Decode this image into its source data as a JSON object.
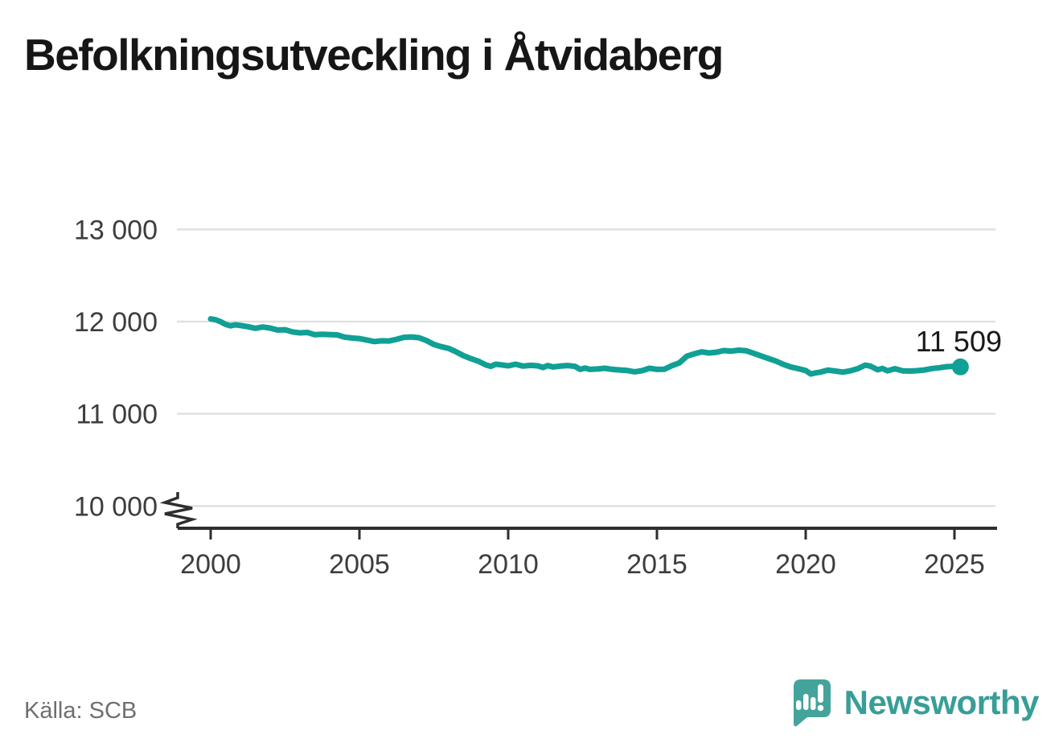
{
  "title": "Befolkningsutveckling i Åtvidaberg",
  "source": "Källa: SCB",
  "branding": {
    "wordmark": "Newsworthy",
    "logo_icon": "newsworthy-speech-bubble-bar-chart-icon"
  },
  "colors": {
    "line": "#10a095",
    "end_dot": "#10a095",
    "grid": "#e1e1e1",
    "axis": "#2e2e2e",
    "tick_label": "#3d3d3d",
    "title": "#161616",
    "end_label": "#191919",
    "source": "#6f6f6f",
    "brand_mark": "#44a49c",
    "brand_text": "#389e97"
  },
  "chart_data": {
    "type": "line",
    "title": "Befolkningsutveckling i Åtvidaberg",
    "series_name": "Befolkning i Åtvidaberg",
    "grid": "horizontal",
    "legend": false,
    "xlabel": "",
    "ylabel": "",
    "x_axis": {
      "ticks": [
        2000,
        2005,
        2010,
        2015,
        2020,
        2025
      ],
      "range": [
        2000,
        2026.4
      ]
    },
    "y_axis": {
      "ticks": [
        {
          "label": "13 000",
          "value": 13000
        },
        {
          "label": "12 000",
          "value": 12000
        },
        {
          "label": "11 000",
          "value": 11000
        },
        {
          "label": "10 000",
          "value": 10000
        }
      ],
      "axis_break_below": 10000
    },
    "last_point": {
      "x": 2025.2,
      "value": 11509,
      "label": "11 509"
    },
    "points": [
      [
        2000.0,
        12030
      ],
      [
        2000.17,
        12020
      ],
      [
        2000.33,
        12000
      ],
      [
        2000.5,
        11970
      ],
      [
        2000.67,
        11955
      ],
      [
        2000.83,
        11965
      ],
      [
        2001.0,
        11958
      ],
      [
        2001.25,
        11945
      ],
      [
        2001.5,
        11928
      ],
      [
        2001.75,
        11942
      ],
      [
        2002.0,
        11930
      ],
      [
        2002.25,
        11908
      ],
      [
        2002.5,
        11912
      ],
      [
        2002.75,
        11888
      ],
      [
        2003.0,
        11878
      ],
      [
        2003.25,
        11882
      ],
      [
        2003.5,
        11858
      ],
      [
        2003.75,
        11862
      ],
      [
        2004.0,
        11860
      ],
      [
        2004.25,
        11856
      ],
      [
        2004.5,
        11832
      ],
      [
        2004.75,
        11822
      ],
      [
        2005.0,
        11816
      ],
      [
        2005.25,
        11800
      ],
      [
        2005.5,
        11784
      ],
      [
        2005.75,
        11792
      ],
      [
        2006.0,
        11790
      ],
      [
        2006.25,
        11808
      ],
      [
        2006.5,
        11830
      ],
      [
        2006.75,
        11833
      ],
      [
        2007.0,
        11826
      ],
      [
        2007.25,
        11795
      ],
      [
        2007.5,
        11752
      ],
      [
        2007.75,
        11728
      ],
      [
        2008.0,
        11710
      ],
      [
        2008.25,
        11672
      ],
      [
        2008.5,
        11630
      ],
      [
        2008.75,
        11598
      ],
      [
        2009.0,
        11570
      ],
      [
        2009.25,
        11530
      ],
      [
        2009.42,
        11515
      ],
      [
        2009.58,
        11538
      ],
      [
        2009.75,
        11532
      ],
      [
        2010.0,
        11520
      ],
      [
        2010.25,
        11538
      ],
      [
        2010.5,
        11518
      ],
      [
        2010.75,
        11526
      ],
      [
        2011.0,
        11520
      ],
      [
        2011.17,
        11502
      ],
      [
        2011.33,
        11524
      ],
      [
        2011.5,
        11508
      ],
      [
        2011.75,
        11518
      ],
      [
        2012.0,
        11524
      ],
      [
        2012.25,
        11514
      ],
      [
        2012.42,
        11482
      ],
      [
        2012.58,
        11496
      ],
      [
        2012.75,
        11482
      ],
      [
        2013.0,
        11486
      ],
      [
        2013.25,
        11494
      ],
      [
        2013.5,
        11482
      ],
      [
        2013.75,
        11476
      ],
      [
        2014.0,
        11470
      ],
      [
        2014.25,
        11456
      ],
      [
        2014.5,
        11468
      ],
      [
        2014.75,
        11494
      ],
      [
        2015.0,
        11482
      ],
      [
        2015.25,
        11484
      ],
      [
        2015.5,
        11522
      ],
      [
        2015.75,
        11552
      ],
      [
        2016.0,
        11624
      ],
      [
        2016.25,
        11650
      ],
      [
        2016.5,
        11672
      ],
      [
        2016.75,
        11660
      ],
      [
        2017.0,
        11668
      ],
      [
        2017.25,
        11686
      ],
      [
        2017.5,
        11680
      ],
      [
        2017.75,
        11690
      ],
      [
        2018.0,
        11684
      ],
      [
        2018.25,
        11656
      ],
      [
        2018.5,
        11628
      ],
      [
        2018.75,
        11600
      ],
      [
        2019.0,
        11572
      ],
      [
        2019.25,
        11536
      ],
      [
        2019.5,
        11508
      ],
      [
        2019.75,
        11490
      ],
      [
        2020.0,
        11470
      ],
      [
        2020.17,
        11432
      ],
      [
        2020.33,
        11444
      ],
      [
        2020.5,
        11452
      ],
      [
        2020.75,
        11474
      ],
      [
        2021.0,
        11464
      ],
      [
        2021.25,
        11452
      ],
      [
        2021.5,
        11466
      ],
      [
        2021.75,
        11490
      ],
      [
        2022.0,
        11528
      ],
      [
        2022.17,
        11518
      ],
      [
        2022.42,
        11478
      ],
      [
        2022.58,
        11492
      ],
      [
        2022.75,
        11466
      ],
      [
        2023.0,
        11490
      ],
      [
        2023.25,
        11466
      ],
      [
        2023.5,
        11464
      ],
      [
        2023.75,
        11468
      ],
      [
        2024.0,
        11476
      ],
      [
        2024.25,
        11492
      ],
      [
        2024.5,
        11500
      ],
      [
        2024.75,
        11512
      ],
      [
        2025.0,
        11515
      ],
      [
        2025.2,
        11509
      ]
    ]
  }
}
